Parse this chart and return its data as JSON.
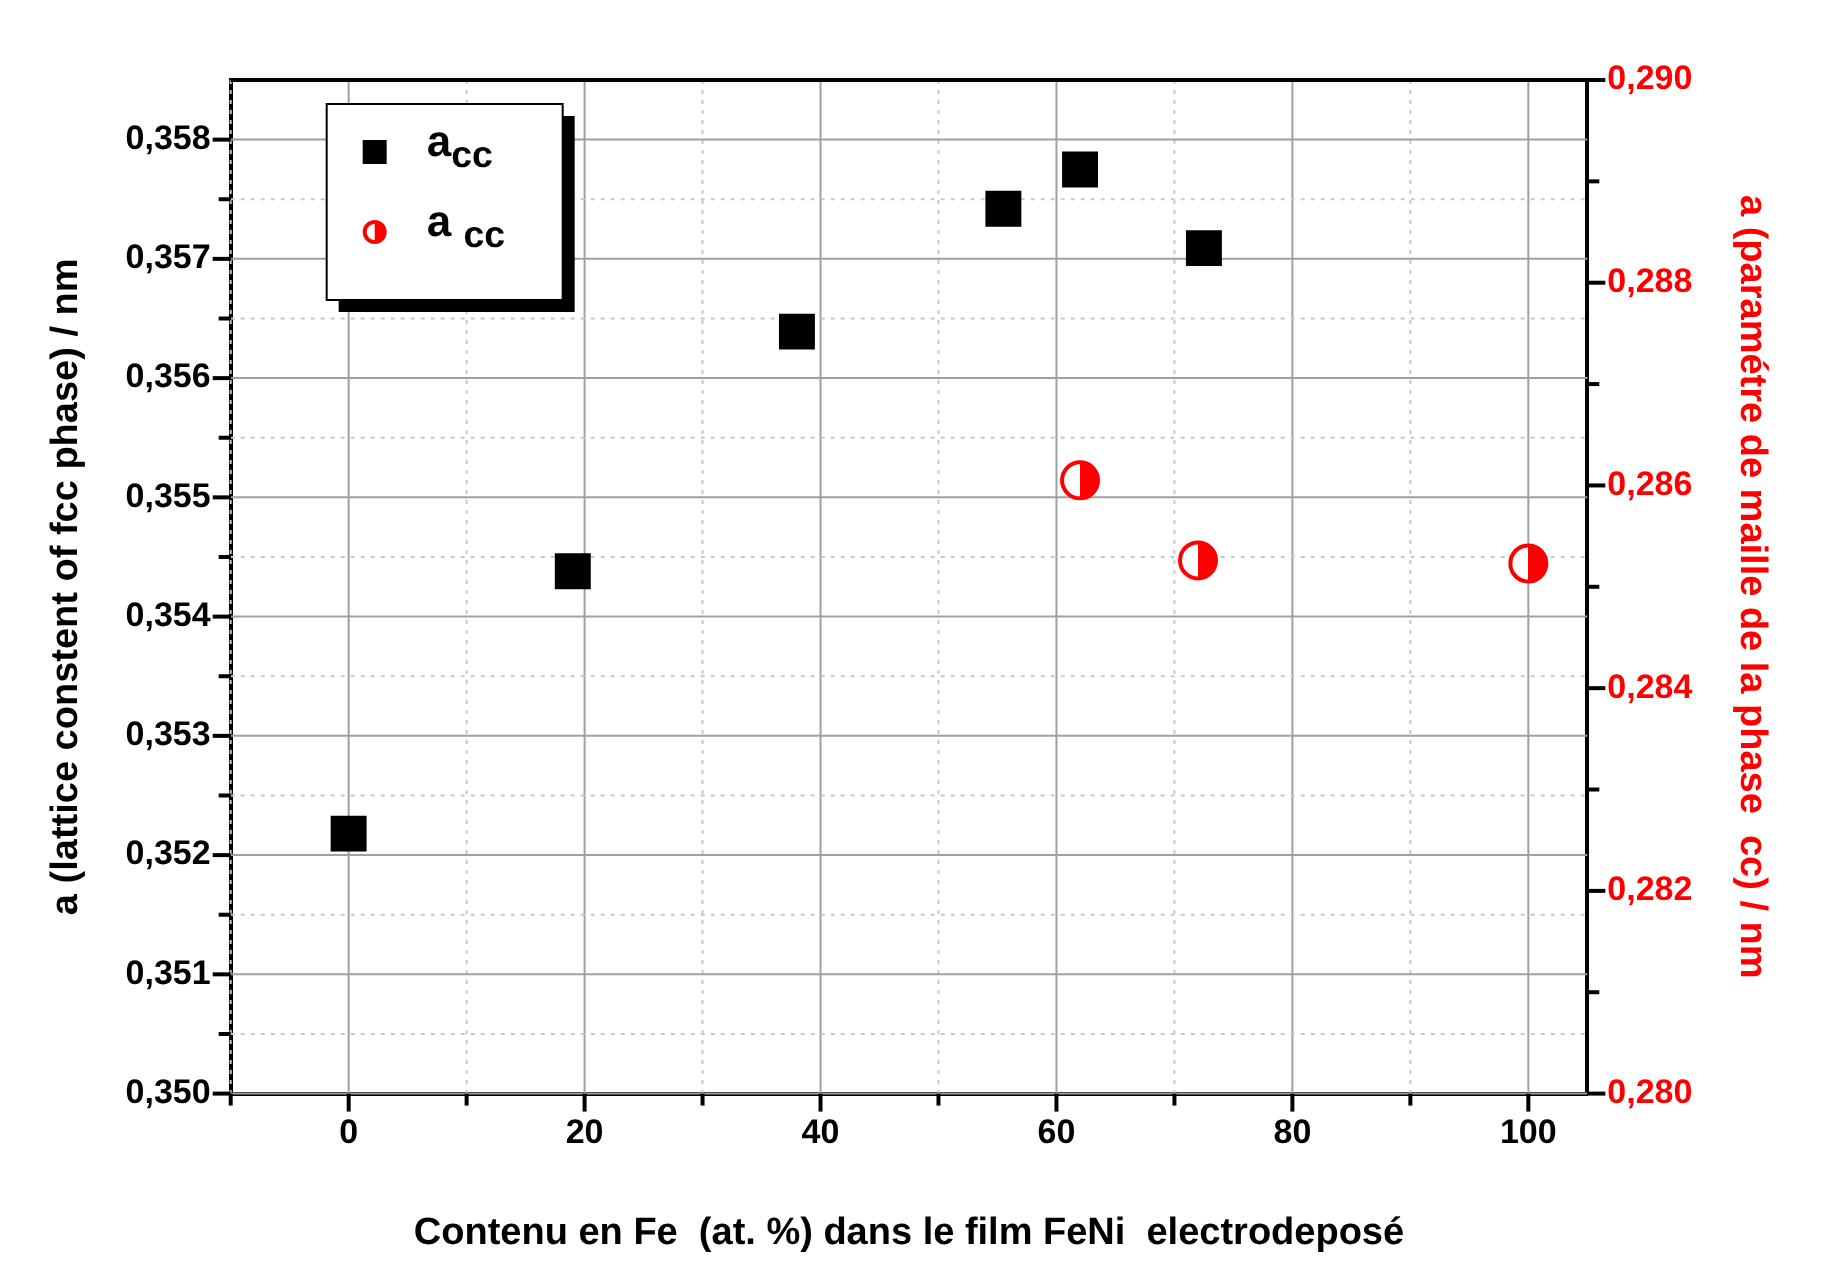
{
  "chart_data": {
    "type": "scatter",
    "xlabel": "Contenu en Fe  (at. %) dans le film FeNi  electrodeposé",
    "ylabel": "a (lattice constent of fcc phase) / nm",
    "y2label": "a (paramétre de maille de la phase  cc) / nm",
    "series": [
      {
        "name": "a$_{cc}$",
        "color": "#000000",
        "marker": "square",
        "x": [
          0,
          19,
          38,
          55.5,
          62,
          72.5
        ],
        "values": [
          0.35218,
          0.35438,
          0.35639,
          0.35742,
          0.35775,
          0.35709
        ]
      },
      {
        "name": "a $_{cc}$",
        "color": "#ff0000",
        "marker": "circle",
        "axis": "y2",
        "x": [
          62,
          72,
          100
        ],
        "values": [
          0.28605,
          0.28526,
          0.28523
        ]
      }
    ],
    "xlim": [
      -10,
      105
    ],
    "xticks": [
      {
        "value": -10,
        "label": null
      },
      0,
      {
        "value": 10,
        "label": null
      },
      20,
      {
        "value": 30,
        "label": null
      },
      40,
      {
        "value": 50,
        "label": null
      },
      60,
      {
        "value": 70,
        "label": null
      },
      80,
      {
        "value": 90,
        "label": null
      },
      100
    ],
    "ylim": [
      0.35,
      0.3585
    ],
    "yticks": [
      {
        "value": 0.35,
        "label": "0,350"
      },
      {
        "value": 0.3505,
        "label": null
      },
      {
        "value": 0.351,
        "label": "0,351"
      },
      {
        "value": 0.3515,
        "label": null
      },
      {
        "value": 0.352,
        "label": "0,352"
      },
      {
        "value": 0.3525,
        "label": null
      },
      {
        "value": 0.353,
        "label": "0,353"
      },
      {
        "value": 0.3535,
        "label": null
      },
      {
        "value": 0.354,
        "label": "0,354"
      },
      {
        "value": 0.3545,
        "label": null
      },
      {
        "value": 0.355,
        "label": "0,355"
      },
      {
        "value": 0.3555,
        "label": null
      },
      {
        "value": 0.356,
        "label": "0,356"
      },
      {
        "value": 0.3565,
        "label": null
      },
      {
        "value": 0.357,
        "label": "0,357"
      },
      {
        "value": 0.3575,
        "label": null
      },
      {
        "value": 0.358,
        "label": "0,358"
      }
    ],
    "y2lim": [
      0.28,
      0.29
    ],
    "y2ticks": [
      {
        "value": 0.28,
        "label": "0,280"
      },
      {
        "value": 0.281,
        "label": null
      },
      {
        "value": 0.282,
        "label": "0,282"
      },
      {
        "value": 0.283,
        "label": null
      },
      {
        "value": 0.284,
        "label": "0,284"
      },
      {
        "value": 0.285,
        "label": null
      },
      {
        "value": 0.286,
        "label": "0,286"
      },
      {
        "value": 0.287,
        "label": null
      },
      {
        "value": 0.288,
        "label": "0,288"
      },
      {
        "value": 0.289,
        "label": null
      },
      {
        "value": 0.29,
        "label": "0,290"
      }
    ],
    "grid": true,
    "legend": "top left"
  }
}
